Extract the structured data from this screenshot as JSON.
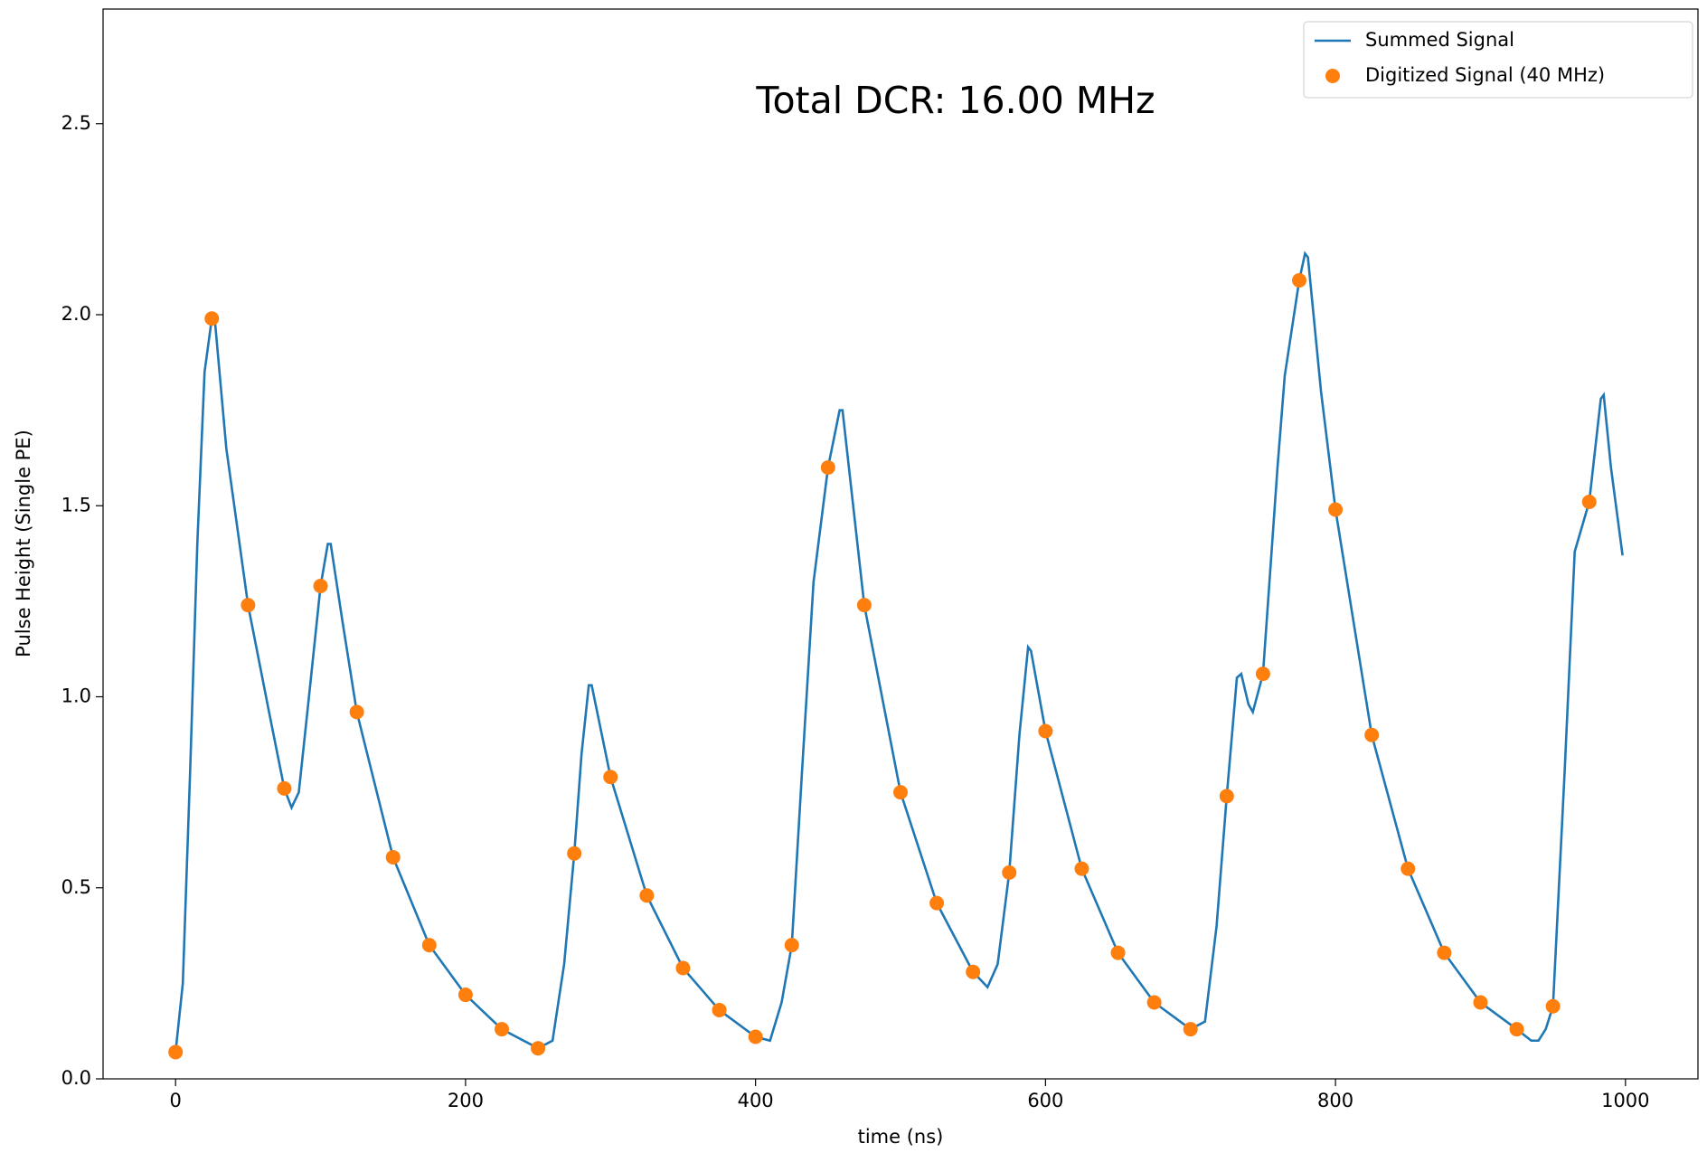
{
  "chart_data": {
    "type": "line",
    "xlabel": "time (ns)",
    "ylabel": "Pulse Height (Single PE)",
    "annotation": {
      "text": "Total DCR: 16.00 MHz",
      "color": "#ff0000"
    },
    "xlim": [
      -50,
      1050
    ],
    "ylim": [
      0,
      2.8
    ],
    "xticks": [
      0,
      200,
      400,
      600,
      800,
      1000
    ],
    "yticks": [
      {
        "value": 0,
        "label": "0.0"
      },
      0.5,
      {
        "value": 1,
        "label": "1.0"
      },
      1.5,
      {
        "value": 2,
        "label": "2.0"
      },
      2.5
    ],
    "legend": "upper right",
    "series": [
      {
        "name": "Summed Signal",
        "type": "line",
        "color": "#1f77b4",
        "x": [
          0,
          5,
          10,
          15,
          20,
          25,
          27,
          35,
          50,
          65,
          75,
          80,
          85,
          92,
          100,
          105,
          107,
          115,
          125,
          150,
          175,
          200,
          225,
          250,
          260,
          268,
          275,
          280,
          285,
          287,
          300,
          325,
          350,
          375,
          400,
          410,
          418,
          425,
          432,
          440,
          450,
          458,
          460,
          475,
          500,
          525,
          550,
          560,
          567,
          575,
          582,
          588,
          590,
          600,
          625,
          650,
          675,
          700,
          710,
          718,
          725,
          732,
          735,
          740,
          743,
          750,
          760,
          765,
          775,
          779,
          781,
          790,
          800,
          825,
          850,
          875,
          900,
          925,
          935,
          940,
          945,
          950,
          958,
          965,
          975,
          983,
          985,
          990,
          998
        ],
        "values": [
          0.07,
          0.25,
          0.8,
          1.4,
          1.85,
          1.99,
          1.99,
          1.65,
          1.24,
          0.95,
          0.76,
          0.71,
          0.75,
          1.0,
          1.29,
          1.4,
          1.4,
          1.2,
          0.96,
          0.58,
          0.35,
          0.22,
          0.13,
          0.08,
          0.1,
          0.3,
          0.59,
          0.85,
          1.03,
          1.03,
          0.79,
          0.48,
          0.29,
          0.18,
          0.11,
          0.1,
          0.2,
          0.35,
          0.8,
          1.3,
          1.6,
          1.75,
          1.75,
          1.24,
          0.75,
          0.46,
          0.28,
          0.24,
          0.3,
          0.54,
          0.9,
          1.13,
          1.12,
          0.91,
          0.55,
          0.33,
          0.2,
          0.13,
          0.15,
          0.4,
          0.74,
          1.05,
          1.06,
          0.98,
          0.96,
          1.06,
          1.6,
          1.84,
          2.09,
          2.16,
          2.15,
          1.8,
          1.49,
          0.9,
          0.55,
          0.33,
          0.2,
          0.13,
          0.1,
          0.1,
          0.13,
          0.19,
          0.8,
          1.38,
          1.51,
          1.78,
          1.79,
          1.6,
          1.37
        ]
      },
      {
        "name": "Digitized Signal (40 MHz)",
        "type": "scatter",
        "color": "#ff7f0e",
        "x": [
          0,
          25,
          50,
          75,
          100,
          125,
          150,
          175,
          200,
          225,
          250,
          275,
          300,
          325,
          350,
          375,
          400,
          425,
          450,
          475,
          500,
          525,
          550,
          575,
          600,
          625,
          650,
          675,
          700,
          725,
          750,
          775,
          800,
          825,
          850,
          875,
          900,
          925,
          950,
          975
        ],
        "values": [
          0.07,
          1.99,
          1.24,
          0.76,
          1.29,
          0.96,
          0.58,
          0.35,
          0.22,
          0.13,
          0.08,
          0.59,
          0.79,
          0.48,
          0.29,
          0.18,
          0.11,
          0.35,
          1.6,
          1.24,
          0.75,
          0.46,
          0.28,
          0.54,
          0.91,
          0.55,
          0.33,
          0.2,
          0.13,
          0.74,
          1.06,
          2.09,
          1.49,
          0.9,
          0.55,
          0.33,
          0.2,
          0.13,
          0.19,
          1.51
        ]
      }
    ]
  }
}
